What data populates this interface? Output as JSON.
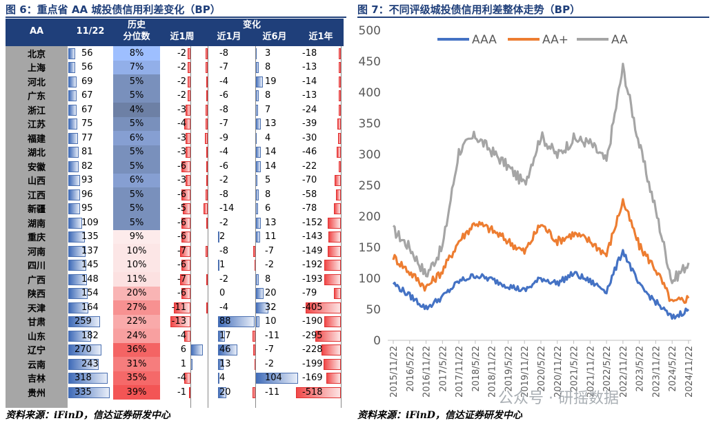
{
  "left": {
    "title": "图 6：重点省 AA 城投债信用利差变化（BP）",
    "source": "资料来源：iFinD，信达证券研发中心",
    "headers": {
      "aa": "AA",
      "date": "11/22",
      "hist_line1": "历史",
      "hist_line2": "分位数",
      "change": "变化",
      "w1": "近1周",
      "m1": "近1月",
      "m6": "近6月",
      "y1": "近1年"
    },
    "rows": [
      {
        "prov": "北京",
        "val": 56,
        "pct": "8%",
        "w1": -2,
        "m1": -8,
        "m6": 3,
        "y1": -18
      },
      {
        "prov": "上海",
        "val": 56,
        "pct": "7%",
        "w1": -2,
        "m1": -7,
        "m6": 8,
        "y1": -13
      },
      {
        "prov": "河北",
        "val": 69,
        "pct": "5%",
        "w1": -2,
        "m1": -4,
        "m6": 19,
        "y1": -14
      },
      {
        "prov": "广东",
        "val": 67,
        "pct": "5%",
        "w1": -2,
        "m1": -6,
        "m6": 8,
        "y1": -13
      },
      {
        "prov": "浙江",
        "val": 67,
        "pct": "4%",
        "w1": -3,
        "m1": -8,
        "m6": 7,
        "y1": -24
      },
      {
        "prov": "江苏",
        "val": 75,
        "pct": "5%",
        "w1": -4,
        "m1": -7,
        "m6": 13,
        "y1": -39
      },
      {
        "prov": "福建",
        "val": 77,
        "pct": "6%",
        "w1": -3,
        "m1": -9,
        "m6": 4,
        "y1": -30
      },
      {
        "prov": "湖北",
        "val": 81,
        "pct": "5%",
        "w1": -3,
        "m1": -4,
        "m6": 14,
        "y1": -46
      },
      {
        "prov": "安徽",
        "val": 82,
        "pct": "5%",
        "w1": -6,
        "m1": -6,
        "m6": 14,
        "y1": -22
      },
      {
        "prov": "山西",
        "val": 93,
        "pct": "6%",
        "w1": -3,
        "m1": -2,
        "m6": 5,
        "y1": -70
      },
      {
        "prov": "江西",
        "val": 96,
        "pct": "5%",
        "w1": -6,
        "m1": -8,
        "m6": 8,
        "y1": -58
      },
      {
        "prov": "新疆",
        "val": 95,
        "pct": "5%",
        "w1": -5,
        "m1": -14,
        "m6": 6,
        "y1": -78
      },
      {
        "prov": "湖南",
        "val": 109,
        "pct": "5%",
        "w1": -6,
        "m1": -2,
        "m6": 13,
        "y1": -152
      },
      {
        "prov": "重庆",
        "val": 135,
        "pct": "9%",
        "w1": -6,
        "m1": 2,
        "m6": 11,
        "y1": -143
      },
      {
        "prov": "河南",
        "val": 137,
        "pct": "10%",
        "w1": -7,
        "m1": -8,
        "m6": -7,
        "y1": -149
      },
      {
        "prov": "四川",
        "val": 145,
        "pct": "10%",
        "w1": -6,
        "m1": 1,
        "m6": -2,
        "y1": -192
      },
      {
        "prov": "广西",
        "val": 148,
        "pct": "11%",
        "w1": -7,
        "m1": -2,
        "m6": 8,
        "y1": -193
      },
      {
        "prov": "陕西",
        "val": 154,
        "pct": "20%",
        "w1": -6,
        "m1": 0,
        "m6": 20,
        "y1": -79
      },
      {
        "prov": "天津",
        "val": 164,
        "pct": "27%",
        "w1": -11,
        "m1": -4,
        "m6": 32,
        "y1": -405
      },
      {
        "prov": "甘肃",
        "val": 259,
        "pct": "22%",
        "w1": -13,
        "m1": 88,
        "m6": 10,
        "y1": -190
      },
      {
        "prov": "山东",
        "val": 182,
        "pct": "24%",
        "w1": -4,
        "m1": 17,
        "m6": -11,
        "y1": -295
      },
      {
        "prov": "辽宁",
        "val": 270,
        "pct": "36%",
        "w1": 6,
        "m1": 46,
        "m6": -7,
        "y1": -228
      },
      {
        "prov": "云南",
        "val": 243,
        "pct": "31%",
        "w1": 1,
        "m1": 13,
        "m6": -2,
        "y1": -199
      },
      {
        "prov": "吉林",
        "val": 318,
        "pct": "35%",
        "w1": -4,
        "m1": 4,
        "m6": 104,
        "y1": -169
      },
      {
        "prov": "贵州",
        "val": 335,
        "pct": "39%",
        "w1": -1,
        "m1": 20,
        "m6": -11,
        "y1": -518
      }
    ]
  },
  "right": {
    "title": "图 7：不同评级城投债信用利差整体走势（BP）",
    "source": "资料来源：iFinD，信达证券研发中心",
    "watermark": "公众号 · 研摇数据"
  },
  "chart_data": {
    "type": "line",
    "x": [
      "2015/11/22",
      "2016/5/22",
      "2016/11/22",
      "2017/5/22",
      "2017/11/22",
      "2018/5/22",
      "2018/11/22",
      "2019/5/22",
      "2019/11/22",
      "2020/5/22",
      "2020/11/22",
      "2021/5/22",
      "2021/11/22",
      "2022/5/22",
      "2022/11/22",
      "2023/5/22",
      "2023/11/22",
      "2024/5/22",
      "2024/11/22"
    ],
    "ylim": [
      0,
      500
    ],
    "yticks": [
      0,
      50,
      100,
      150,
      200,
      250,
      300,
      350,
      400,
      450,
      500
    ],
    "legend_position": "top",
    "series": [
      {
        "name": "AAA",
        "color": "#4472c4",
        "values": [
          92,
          72,
          52,
          70,
          95,
          105,
          98,
          88,
          80,
          100,
          92,
          108,
          95,
          80,
          145,
          88,
          62,
          36,
          50
        ]
      },
      {
        "name": "AA+",
        "color": "#ed7d31",
        "values": [
          135,
          110,
          85,
          112,
          160,
          190,
          178,
          160,
          142,
          188,
          160,
          172,
          160,
          138,
          225,
          152,
          115,
          60,
          68
        ]
      },
      {
        "name": "AA",
        "color": "#a5a5a5",
        "values": [
          178,
          150,
          105,
          150,
          305,
          330,
          305,
          280,
          252,
          330,
          298,
          325,
          318,
          288,
          440,
          315,
          210,
          95,
          125
        ]
      }
    ]
  }
}
